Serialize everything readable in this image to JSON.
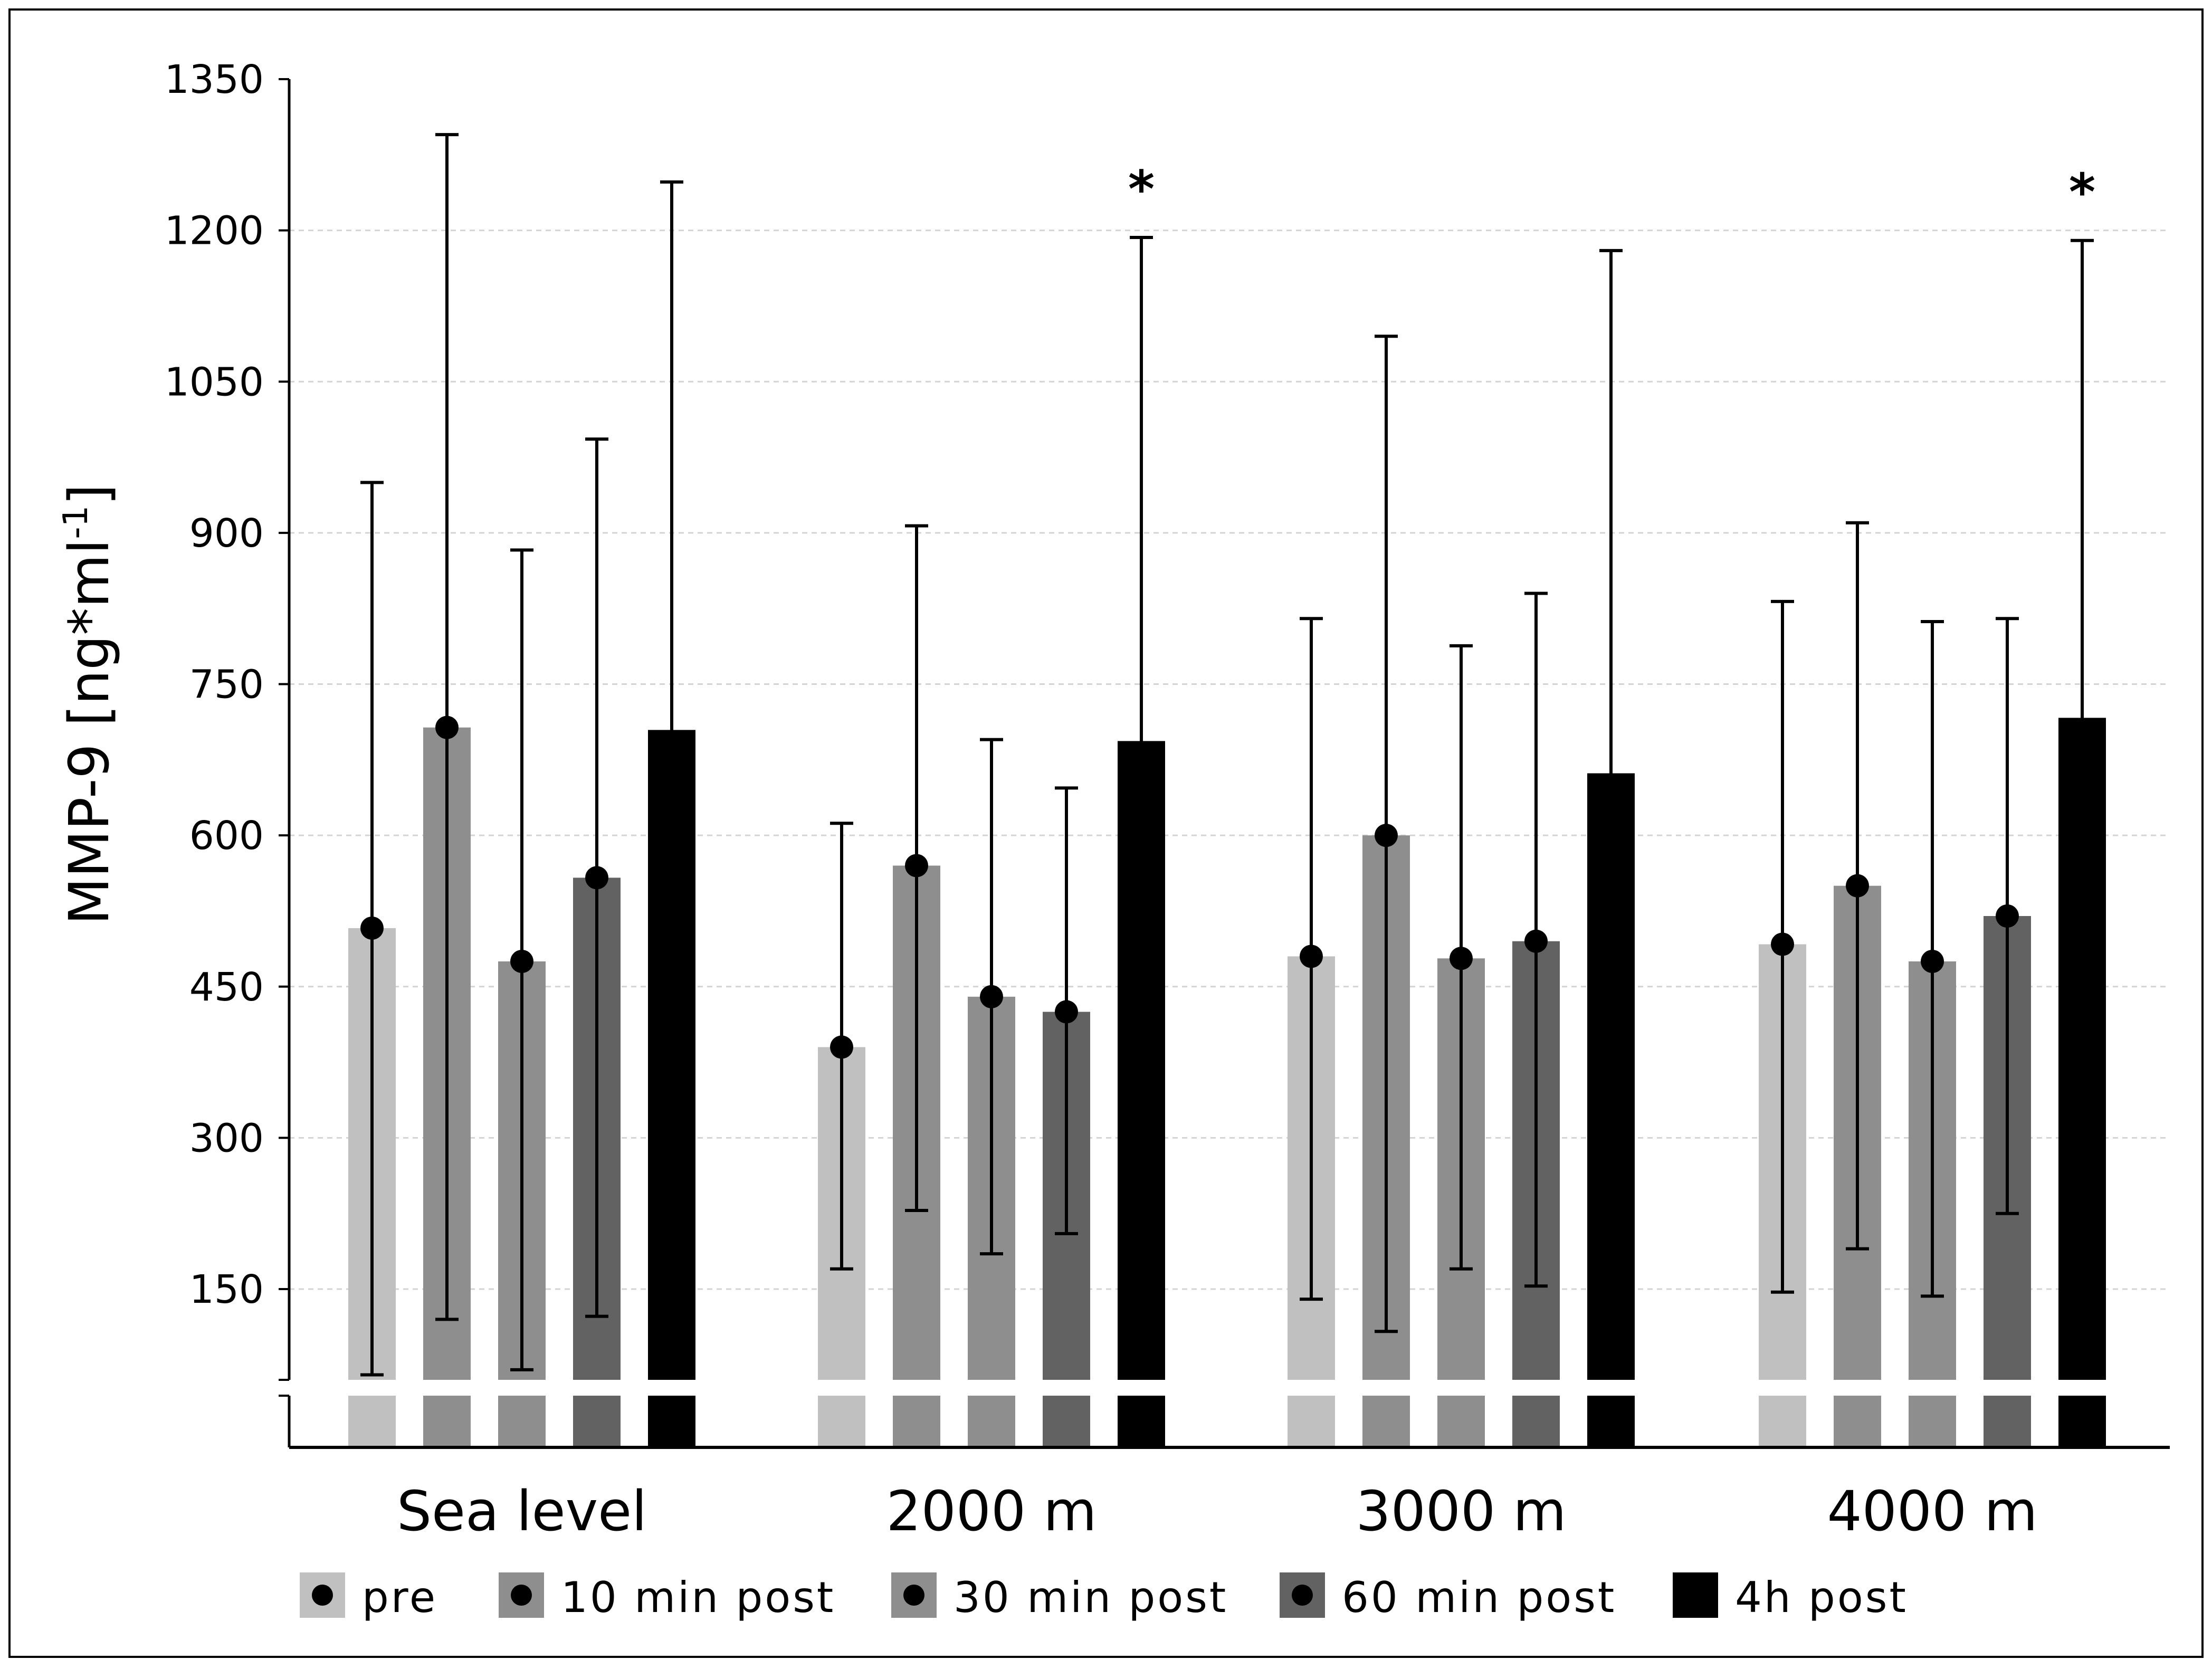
{
  "chart_data": {
    "type": "bar",
    "title": "",
    "xlabel": "",
    "ylabel": "MMP-9 [ng*ml",
    "ylabel_superscript": "-1",
    "ylabel_suffix": "]",
    "ylim": [
      60,
      1350
    ],
    "yticks": [
      "150",
      "300",
      "450",
      "600",
      "750",
      "900",
      "1050",
      "1200",
      "1350"
    ],
    "axis_break": true,
    "grid": true,
    "legend_position": "bottom",
    "categories": [
      "Sea level",
      "2000 m",
      "3000 m",
      "4000 m"
    ],
    "series": [
      {
        "name": "pre",
        "color": "#c0c0c0",
        "marker": true,
        "values": [
          508,
          390,
          480,
          492
        ],
        "err_low": [
          65,
          170,
          140,
          147
        ],
        "err_high": [
          950,
          612,
          815,
          832
        ]
      },
      {
        "name": "10 min post",
        "color": "#8e8e8e",
        "marker": true,
        "values": [
          707,
          570,
          600,
          550
        ],
        "err_low": [
          120,
          228,
          108,
          190
        ],
        "err_high": [
          1295,
          907,
          1095,
          910
        ]
      },
      {
        "name": "30 min post",
        "color": "#8e8e8e",
        "marker": true,
        "values": [
          475,
          440,
          478,
          475
        ],
        "err_low": [
          70,
          185,
          170,
          143
        ],
        "err_high": [
          883,
          695,
          788,
          812
        ]
      },
      {
        "name": "60 min post",
        "color": "#626262",
        "marker": true,
        "values": [
          558,
          425,
          495,
          520
        ],
        "err_low": [
          123,
          205,
          153,
          225
        ],
        "err_high": [
          993,
          647,
          840,
          815
        ]
      },
      {
        "name": "4h post",
        "color": "#000000",
        "marker": false,
        "values": [
          703,
          692,
          660,
          715
        ],
        "err_low": [
          null,
          null,
          null,
          null
        ],
        "err_high": [
          1248,
          1193,
          1180,
          1190
        ]
      }
    ],
    "annotations": [
      {
        "category": "2000 m",
        "series": "4h post",
        "text": "*"
      },
      {
        "category": "4000 m",
        "series": "4h post",
        "text": "*"
      }
    ]
  }
}
